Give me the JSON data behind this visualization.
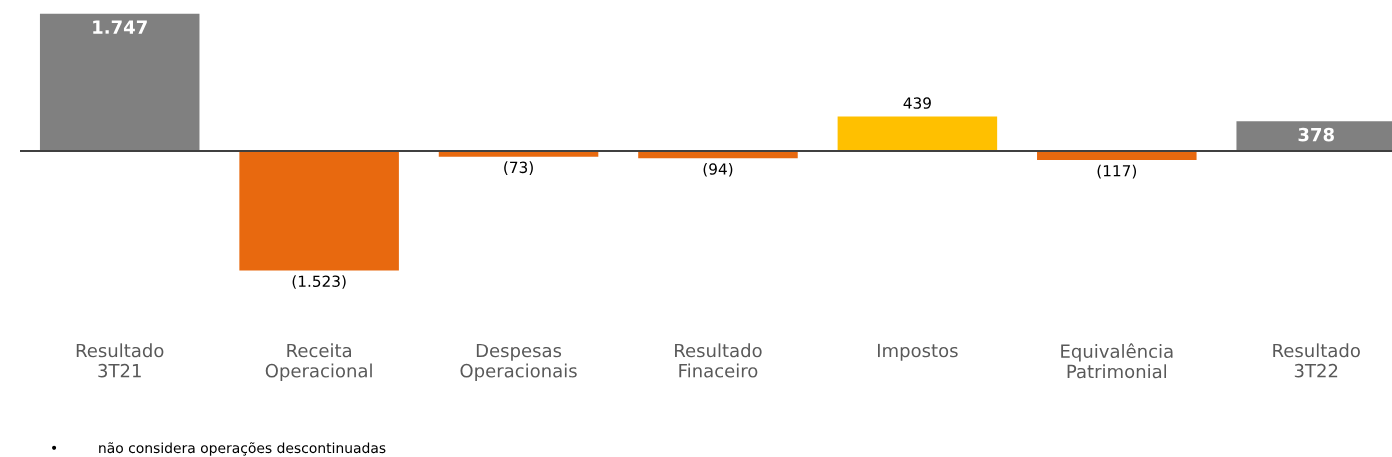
{
  "chart_data": {
    "type": "bar",
    "categories": [
      "Resultado\n3T21",
      "Receita\nOperacional",
      "Despesas\nOperacionais",
      "Resultado\nFinaceiro",
      "Impostos",
      "Equivalência\nPatrimonial",
      "Resultado\n3T22"
    ],
    "values": [
      1747,
      -1523,
      -73,
      -94,
      439,
      -117,
      378
    ],
    "colors": [
      "#808080",
      "#e8690f",
      "#e8690f",
      "#e8690f",
      "#ffc000",
      "#e8690f",
      "#808080"
    ],
    "value_labels": [
      "1.747",
      "(1.523)",
      "(73)",
      "(94)",
      "439",
      "(117)",
      "378"
    ],
    "tick_labels": "x",
    "grid": false,
    "legend": false,
    "annotations": [
      "•         não considera operações descontinuadas"
    ]
  }
}
